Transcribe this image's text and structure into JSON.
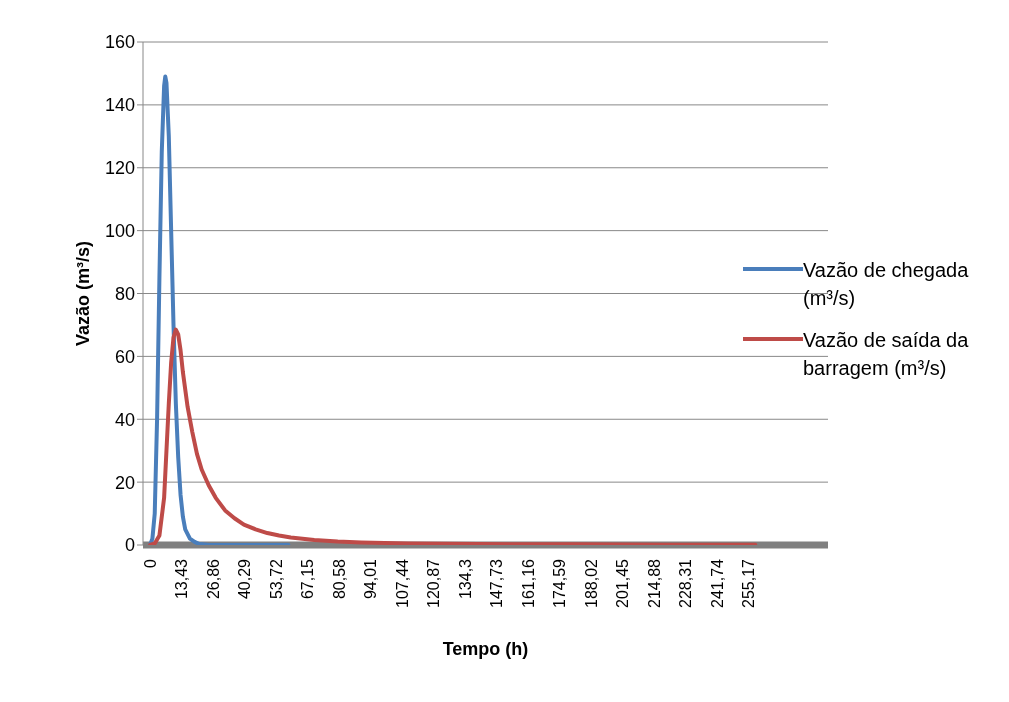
{
  "chart_data": {
    "type": "line",
    "xlabel": "Tempo (h)",
    "ylabel": "Vazão (m³/s)",
    "xlim": [
      -3,
      289
    ],
    "ylim": [
      0,
      160
    ],
    "yticks": [
      0,
      20,
      40,
      60,
      80,
      100,
      120,
      140,
      160
    ],
    "xticks": [
      {
        "value": 0,
        "label": "0"
      },
      {
        "value": 13.43,
        "label": "13,43"
      },
      {
        "value": 26.86,
        "label": "26,86"
      },
      {
        "value": 40.29,
        "label": "40,29"
      },
      {
        "value": 53.72,
        "label": "53,72"
      },
      {
        "value": 67.15,
        "label": "67,15"
      },
      {
        "value": 80.58,
        "label": "80,58"
      },
      {
        "value": 94.01,
        "label": "94,01"
      },
      {
        "value": 107.44,
        "label": "107,44"
      },
      {
        "value": 120.87,
        "label": "120,87"
      },
      {
        "value": 134.3,
        "label": "134,3"
      },
      {
        "value": 147.73,
        "label": "147,73"
      },
      {
        "value": 161.16,
        "label": "161,16"
      },
      {
        "value": 174.59,
        "label": "174,59"
      },
      {
        "value": 188.02,
        "label": "188,02"
      },
      {
        "value": 201.45,
        "label": "201,45"
      },
      {
        "value": 214.88,
        "label": "214,88"
      },
      {
        "value": 228.31,
        "label": "228,31"
      },
      {
        "value": 241.74,
        "label": "241,74"
      },
      {
        "value": 255.17,
        "label": "255,17"
      }
    ],
    "grid": "y",
    "legend": "right",
    "marker": "none",
    "line_style": "solid",
    "series": [
      {
        "name": "Vazão de chegada (m³/s)",
        "color": "#4a7ebb",
        "x": [
          0,
          1,
          2,
          3,
          4,
          5,
          6,
          6.5,
          7,
          8,
          9,
          10,
          11,
          12,
          13,
          14,
          15,
          17,
          19,
          21,
          25,
          59
        ],
        "values": [
          0,
          2,
          10,
          40,
          85,
          125,
          146,
          149,
          147,
          130,
          100,
          70,
          45,
          28,
          16,
          9,
          5,
          2,
          1,
          0.3,
          0,
          0
        ]
      },
      {
        "name": "Vazão de saída da barragem (m³/s)",
        "color": "#be4b48",
        "x": [
          0,
          2,
          4,
          6,
          7,
          8,
          9,
          10,
          11,
          12,
          13,
          14,
          16,
          18,
          20,
          22,
          25,
          28,
          32,
          36,
          40,
          45,
          50,
          55,
          60,
          70,
          80,
          90,
          110,
          140,
          180,
          220,
          258
        ],
        "values": [
          0,
          0.5,
          3,
          15,
          30,
          45,
          58,
          66,
          68.5,
          67,
          62,
          55,
          44,
          36,
          29,
          24,
          19,
          15,
          11,
          8.5,
          6.5,
          5,
          3.8,
          3,
          2.4,
          1.6,
          1.1,
          0.8,
          0.5,
          0.3,
          0.2,
          0.1,
          0.1
        ]
      }
    ]
  }
}
